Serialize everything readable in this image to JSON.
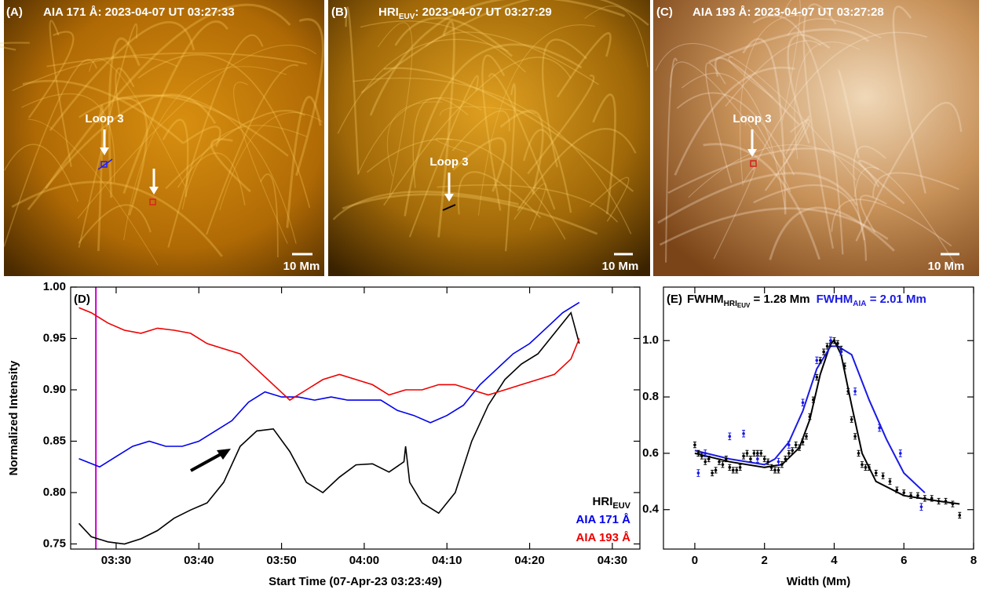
{
  "panels": [
    {
      "label": "(A)",
      "title": "AIA 171 Å: 2023-04-07 UT 03:27:33",
      "annotation": "Loop 3",
      "scale": "10 Mm"
    },
    {
      "label": "(B)",
      "title": "HRI",
      "title_sub": "EUV",
      "title_rest": ": 2023-04-07 UT 03:27:29",
      "annotation": "Loop 3",
      "scale": "10 Mm"
    },
    {
      "label": "(C)",
      "title": "AIA 193 Å: 2023-04-07 UT 03:27:28",
      "annotation": "Loop 3",
      "scale": "10 Mm"
    }
  ],
  "chart_data": [
    {
      "type": "line",
      "label": "(D)",
      "xlabel": "Start Time (07-Apr-23 03:23:49)",
      "ylabel": "Normalized Intensity",
      "xlim": [
        "03:24:30",
        "04:33:20"
      ],
      "xticks": [
        "03:30",
        "03:40",
        "03:50",
        "04:00",
        "04:10",
        "04:20",
        "04:30"
      ],
      "ylim": [
        0.745,
        1.0
      ],
      "yticks": [
        0.75,
        {
          "value": 0.8,
          "label": "0.80"
        },
        0.85,
        {
          "value": 0.9,
          "label": "0.90"
        },
        0.95,
        {
          "value": 1.0,
          "label": "1.00"
        }
      ],
      "legend": "lower right",
      "vline": {
        "x": "03:27:33",
        "color": "#cc00cc"
      },
      "series": [
        {
          "name": "HRI",
          "name_sub": "EUV",
          "color": "#000000",
          "x": [
            "03:25:30",
            "03:27:00",
            "03:29:00",
            "03:31:00",
            "03:33:00",
            "03:35:00",
            "03:37:00",
            "03:39:00",
            "03:41:00",
            "03:43:00",
            "03:45:00",
            "03:47:00",
            "03:49:00",
            "03:51:00",
            "03:53:00",
            "03:55:00",
            "03:57:00",
            "03:59:00",
            "04:01:00",
            "04:03:00",
            "04:04:48",
            "04:05:00",
            "04:05:30",
            "04:07:00",
            "04:09:00",
            "04:11:00",
            "04:13:00",
            "04:15:00",
            "04:17:00",
            "04:19:00",
            "04:21:00",
            "04:23:00",
            "04:25:00",
            "04:26:00"
          ],
          "values": [
            0.77,
            0.757,
            0.752,
            0.75,
            0.755,
            0.763,
            0.775,
            0.783,
            0.79,
            0.81,
            0.845,
            0.86,
            0.862,
            0.84,
            0.81,
            0.8,
            0.815,
            0.827,
            0.828,
            0.82,
            0.83,
            0.845,
            0.81,
            0.79,
            0.78,
            0.8,
            0.85,
            0.885,
            0.91,
            0.925,
            0.935,
            0.955,
            0.975,
            0.945
          ]
        },
        {
          "name": "AIA 171 Å",
          "color": "#0000ee",
          "x": [
            "03:25:30",
            "03:28:00",
            "03:30:00",
            "03:32:00",
            "03:34:00",
            "03:36:00",
            "03:38:00",
            "03:40:00",
            "03:42:00",
            "03:44:00",
            "03:46:00",
            "03:48:00",
            "03:50:00",
            "03:52:00",
            "03:54:00",
            "03:56:00",
            "03:58:00",
            "04:00:00",
            "04:02:00",
            "04:04:00",
            "04:06:00",
            "04:08:00",
            "04:10:00",
            "04:12:00",
            "04:14:00",
            "04:16:00",
            "04:18:00",
            "04:20:00",
            "04:22:00",
            "04:24:00",
            "04:26:00"
          ],
          "values": [
            0.833,
            0.825,
            0.835,
            0.845,
            0.85,
            0.845,
            0.845,
            0.85,
            0.86,
            0.87,
            0.888,
            0.898,
            0.893,
            0.893,
            0.89,
            0.893,
            0.89,
            0.89,
            0.89,
            0.88,
            0.875,
            0.868,
            0.875,
            0.885,
            0.905,
            0.92,
            0.935,
            0.945,
            0.96,
            0.975,
            0.985
          ]
        },
        {
          "name": "AIA 193 Å",
          "color": "#ee0000",
          "x": [
            "03:25:30",
            "03:27:00",
            "03:29:00",
            "03:31:00",
            "03:33:00",
            "03:35:00",
            "03:37:00",
            "03:39:00",
            "03:41:00",
            "03:43:00",
            "03:45:00",
            "03:47:00",
            "03:49:00",
            "03:51:00",
            "03:53:00",
            "03:55:00",
            "03:57:00",
            "03:59:00",
            "04:01:00",
            "04:03:00",
            "04:05:00",
            "04:07:00",
            "04:09:00",
            "04:11:00",
            "04:13:00",
            "04:15:00",
            "04:17:00",
            "04:19:00",
            "04:21:00",
            "04:23:00",
            "04:25:00",
            "04:26:00"
          ],
          "values": [
            0.98,
            0.975,
            0.965,
            0.958,
            0.955,
            0.96,
            0.958,
            0.955,
            0.945,
            0.94,
            0.935,
            0.92,
            0.905,
            0.89,
            0.9,
            0.91,
            0.915,
            0.91,
            0.905,
            0.895,
            0.9,
            0.9,
            0.905,
            0.905,
            0.9,
            0.895,
            0.9,
            0.905,
            0.91,
            0.915,
            0.93,
            0.95
          ]
        }
      ]
    },
    {
      "type": "scatter",
      "label": "(E)",
      "xlabel": "Width (Mm)",
      "xlim": [
        -0.9,
        8.0
      ],
      "xticks": [
        0,
        2,
        4,
        6,
        8
      ],
      "ylim": [
        0.26,
        1.19
      ],
      "yticks": [
        0.4,
        0.6,
        0.8,
        {
          "value": 1.0,
          "label": "1.0"
        }
      ],
      "annotations": [
        {
          "text": "FWHM",
          "sub": "HRI",
          "subsub": "EUV",
          "rest": " = 1.28 Mm",
          "color": "#000000"
        },
        {
          "text": "FWHM",
          "sub": "AIA",
          "rest": " = 2.01 Mm",
          "color": "#1a1ae6"
        }
      ],
      "series": [
        {
          "color": "#000000",
          "x": [
            0,
            0.1,
            0.2,
            0.3,
            0.4,
            0.5,
            0.6,
            0.7,
            0.8,
            0.9,
            1.0,
            1.1,
            1.2,
            1.3,
            1.4,
            1.5,
            1.6,
            1.7,
            1.8,
            1.9,
            2.0,
            2.1,
            2.2,
            2.3,
            2.4,
            2.5,
            2.6,
            2.7,
            2.8,
            2.9,
            3.0,
            3.1,
            3.2,
            3.3,
            3.4,
            3.5,
            3.6,
            3.7,
            3.8,
            3.9,
            4.0,
            4.1,
            4.2,
            4.3,
            4.4,
            4.5,
            4.6,
            4.7,
            4.8,
            4.9,
            5.0,
            5.2,
            5.4,
            5.6,
            5.8,
            6.0,
            6.2,
            6.4,
            6.6,
            6.8,
            7.0,
            7.2,
            7.4,
            7.6
          ],
          "values": [
            0.63,
            0.6,
            0.59,
            0.57,
            0.58,
            0.53,
            0.54,
            0.57,
            0.56,
            0.58,
            0.55,
            0.54,
            0.54,
            0.55,
            0.59,
            0.6,
            0.58,
            0.6,
            0.6,
            0.6,
            0.58,
            0.57,
            0.55,
            0.54,
            0.54,
            0.56,
            0.58,
            0.6,
            0.61,
            0.63,
            0.62,
            0.64,
            0.66,
            0.73,
            0.79,
            0.87,
            0.93,
            0.96,
            0.98,
            0.99,
            1.0,
            0.99,
            0.97,
            0.91,
            0.82,
            0.72,
            0.66,
            0.6,
            0.56,
            0.55,
            0.55,
            0.53,
            0.52,
            0.5,
            0.47,
            0.46,
            0.45,
            0.45,
            0.44,
            0.44,
            0.43,
            0.43,
            0.42,
            0.38
          ],
          "errors": [
            0.01,
            0.01,
            0.01,
            0.01,
            0.01,
            0.01,
            0.01,
            0.01,
            0.01,
            0.01,
            0.01,
            0.01,
            0.01,
            0.01,
            0.01,
            0.01,
            0.01,
            0.01,
            0.01,
            0.01,
            0.01,
            0.01,
            0.01,
            0.01,
            0.01,
            0.01,
            0.01,
            0.01,
            0.01,
            0.01,
            0.01,
            0.01,
            0.01,
            0.01,
            0.01,
            0.01,
            0.01,
            0.01,
            0.01,
            0.01,
            0.01,
            0.01,
            0.01,
            0.01,
            0.01,
            0.01,
            0.01,
            0.01,
            0.01,
            0.01,
            0.01,
            0.01,
            0.01,
            0.01,
            0.01,
            0.01,
            0.01,
            0.01,
            0.01,
            0.01,
            0.01,
            0.01,
            0.01,
            0.01
          ]
        },
        {
          "color": "#1a1ae6",
          "x": [
            0.1,
            0.3,
            1.0,
            1.4,
            1.8,
            2.4,
            2.7,
            3.1,
            3.5,
            3.9,
            4.2,
            4.6,
            5.3,
            5.9,
            6.5
          ],
          "values": [
            0.53,
            0.6,
            0.66,
            0.67,
            0.58,
            0.57,
            0.63,
            0.78,
            0.93,
            1.0,
            0.96,
            0.82,
            0.69,
            0.6,
            0.41
          ],
          "errors": [
            0.012,
            0.012,
            0.012,
            0.012,
            0.012,
            0.012,
            0.012,
            0.012,
            0.012,
            0.012,
            0.012,
            0.012,
            0.012,
            0.012,
            0.012
          ]
        }
      ],
      "fits": [
        {
          "color": "#000000",
          "x": [
            0,
            1,
            2,
            2.5,
            3,
            3.3,
            3.6,
            3.9,
            4.0,
            4.2,
            4.5,
            4.8,
            5.2,
            6,
            7,
            7.6
          ],
          "values": [
            0.6,
            0.57,
            0.55,
            0.56,
            0.62,
            0.72,
            0.88,
            0.99,
            1.0,
            0.95,
            0.77,
            0.6,
            0.5,
            0.45,
            0.43,
            0.42
          ]
        },
        {
          "color": "#1a1ae6",
          "x": [
            0,
            1,
            2,
            2.3,
            2.7,
            3.1,
            3.5,
            3.9,
            4.1,
            4.5,
            5,
            5.5,
            6,
            6.6
          ],
          "values": [
            0.61,
            0.58,
            0.56,
            0.58,
            0.64,
            0.75,
            0.9,
            0.98,
            0.98,
            0.95,
            0.79,
            0.65,
            0.53,
            0.46
          ]
        }
      ]
    }
  ]
}
